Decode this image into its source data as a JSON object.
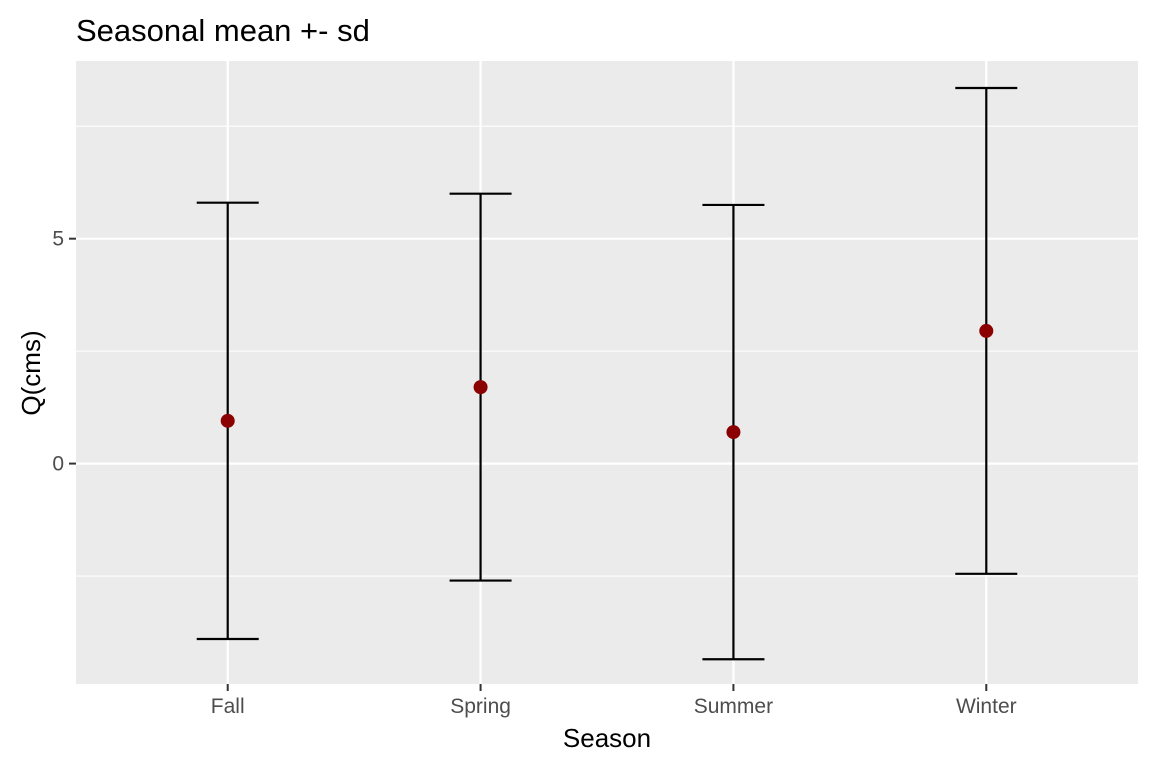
{
  "chart_data": {
    "type": "scatter",
    "title": "Seasonal mean +- sd",
    "xlabel": "Season",
    "ylabel": "Q(cms)",
    "categories": [
      "Fall",
      "Spring",
      "Summer",
      "Winter"
    ],
    "series": [
      {
        "mean": [
          0.95,
          1.7,
          0.7,
          2.95
        ],
        "lower": [
          -3.9,
          -2.6,
          -4.35,
          -2.45
        ],
        "upper": [
          5.8,
          6.0,
          5.75,
          8.35
        ]
      }
    ],
    "ylim": [
      -4.9,
      8.95
    ],
    "yticks": [
      0,
      5
    ],
    "ytick_labels": [
      "0",
      "5"
    ],
    "grid": true,
    "colors": {
      "panel": "#ebebeb",
      "grid": "#ffffff",
      "point": "#8b0000",
      "errorbar": "#000000",
      "tick_text": "#4d4d4d",
      "tick_mark": "#333333"
    }
  }
}
